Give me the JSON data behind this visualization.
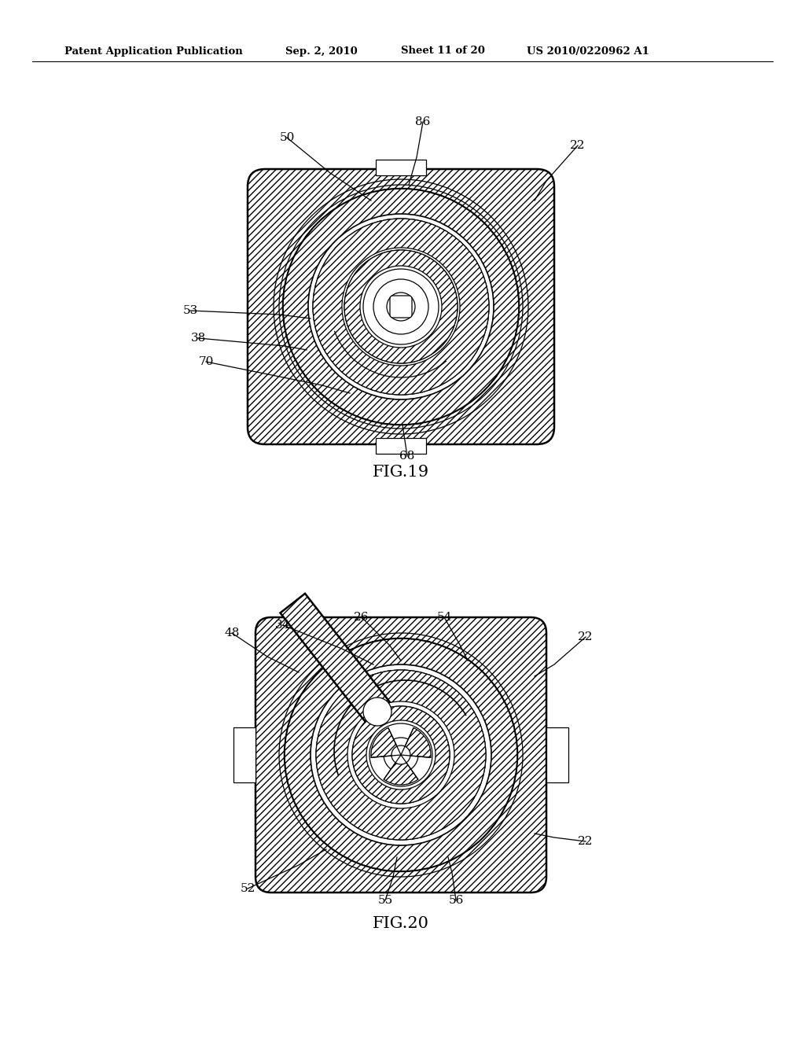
{
  "bg_color": "#ffffff",
  "line_color": "#000000",
  "header_text": "Patent Application Publication",
  "header_date": "Sep. 2, 2010",
  "header_sheet": "Sheet 11 of 20",
  "header_patent": "US 2010/0220962 A1",
  "fig19_title": "FIG.19",
  "fig20_title": "FIG.20"
}
